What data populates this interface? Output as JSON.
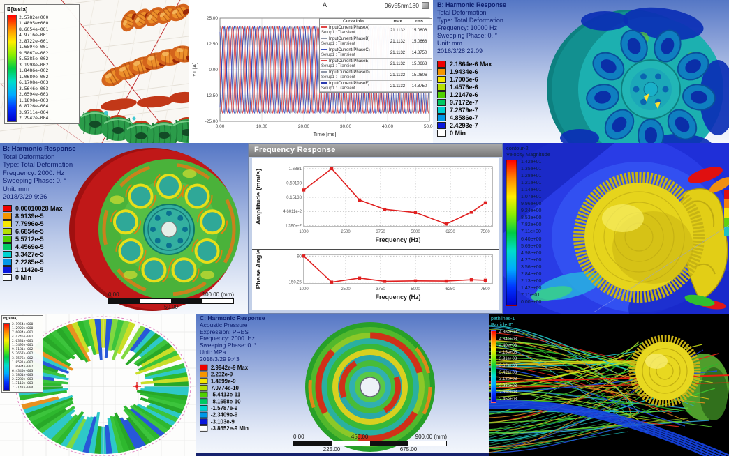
{
  "panels": {
    "flux_top": {
      "legend_title": "B[tesla]",
      "legend_values": [
        "2.5782e+000",
        "1.4895e+000",
        "8.6054e-001",
        "4.9716e-001",
        "2.8722e-001",
        "1.6594e-001",
        "9.5867e-002",
        "5.5385e-002",
        "3.1998e-002",
        "1.8486e-002",
        "1.0680e-002",
        "6.1708e-003",
        "3.5646e-003",
        "2.0594e-003",
        "1.1898e-003",
        "6.8726e-004",
        "3.9711e-004",
        "2.2942e-004"
      ]
    },
    "harmonic_10000": {
      "title": "B: Harmonic Response",
      "lines": "Total Deformation\nType: Total Deformation\nFrequency: 10000 Hz\nSweeping Phase: 0. °\nUnit: mm\n2016/3/28 22:09",
      "legend_values": [
        "2.1864e-6 Max",
        "1.9434e-6",
        "1.7005e-6",
        "1.4576e-6",
        "1.2147e-6",
        "9.7172e-7",
        "7.2879e-7",
        "4.8586e-7",
        "2.4293e-7",
        "0 Min"
      ]
    },
    "harmonic_2000": {
      "title": "B: Harmonic Response",
      "lines": "Total Deformation\nType: Total Deformation\nFrequency: 2000. Hz\nSweeping Phase: 0. °\nUnit: mm\n2018/3/29 9:36",
      "legend_values": [
        "0.00010028 Max",
        "8.9139e-5",
        "7.7996e-5",
        "6.6854e-5",
        "5.5712e-5",
        "4.4569e-5",
        "3.3427e-5",
        "2.2285e-5",
        "1.1142e-5",
        "0 Min"
      ],
      "scale_bar": {
        "left": "0.00",
        "right": "100.00 (mm)",
        "center": "50.00"
      }
    },
    "freq_response_window": {
      "title": "Frequency Response"
    },
    "cfd_velocity": {
      "legend_title_1": "contour-2",
      "legend_title_2": "Velocity Magnitude",
      "legend_values": [
        "1.42e+01",
        "1.35e+01",
        "1.28e+01",
        "1.21e+01",
        "1.14e+01",
        "1.07e+01",
        "9.96e+00",
        "9.24e+00",
        "8.53e+00",
        "7.82e+00",
        "7.11e+00",
        "6.40e+00",
        "5.69e+00",
        "4.98e+00",
        "4.27e+00",
        "3.56e+00",
        "2.84e+00",
        "2.13e+00",
        "1.42e+00",
        "7.11e-01",
        "0.00e+00"
      ]
    },
    "flux_ring": {
      "legend_title": "B[tesla]",
      "legend_values": [
        "2.1954e+000",
        "1.2920e+000",
        "7.6034e-001",
        "4.4745e-001",
        "2.6331e-001",
        "1.5495e-001",
        "9.1181e-002",
        "5.3657e-002",
        "3.1576e-002",
        "1.8581e-002",
        "1.0934e-002",
        "6.4340e-003",
        "3.7861e-003",
        "2.2280e-003",
        "1.3110e-003",
        "7.7147e-004"
      ]
    },
    "acoustic": {
      "title": "C: Harmonic Response",
      "lines": "Acoustic Pressure\nExpression: PRES\nFrequency: 2000. Hz\nSweeping Phase: 0. °\nUnit: MPa\n2018/3/29 9:43",
      "legend_values": [
        "2.9942e-9 Max",
        "2.232e-9",
        "1.4699e-9",
        "7.0774e-10",
        "-5.4413e-11",
        "-8.1658e-10",
        "-1.5787e-9",
        "-2.3409e-9",
        "-3.103e-9",
        "-3.8652e-9 Min"
      ],
      "scale_bar": {
        "left": "0.00",
        "center_top": "450.00",
        "right": "900.00 (mm)",
        "q1": "225.00",
        "q3": "675.00"
      }
    },
    "pathlines": {
      "legend_title_1": "pathlines-1",
      "legend_title_2": "Particle ID",
      "legend_values": [
        "4.86e+03",
        "4.64e+03",
        "4.40e+03",
        "4.15e+03",
        "3.91e+03",
        "3.67e+03",
        "3.42e+03",
        "3.18e+03",
        "2.93e+03",
        "2.69e+03",
        "2.45e+03"
      ]
    }
  },
  "colors": {
    "ansys_bands": [
      "#ee0000",
      "#f59500",
      "#f5e500",
      "#b5e000",
      "#4fd000",
      "#00c865",
      "#00d2d2",
      "#0098e8",
      "#0a18dd",
      "#ffffff"
    ],
    "rainbow_stops": [
      "#ff0000",
      "#ff8800",
      "#ffee00",
      "#88ee00",
      "#00cc44",
      "#00ddcc",
      "#00aaff",
      "#0033ff",
      "#0000cc"
    ]
  },
  "chart_data": [
    {
      "id": "input_current",
      "type": "line",
      "title": "A",
      "subtitle": "96v55nm180",
      "xlabel": "Time [ms]",
      "ylabel": "Y1 [A]",
      "xlim": [
        0,
        50
      ],
      "ylim": [
        -25,
        25
      ],
      "xticks": [
        "0.00",
        "10.00",
        "20.00",
        "30.00",
        "40.00",
        "50.00"
      ],
      "xtick_vals": [
        0,
        10,
        20,
        30,
        40,
        50
      ],
      "yticks": [
        "25.00",
        "12.50",
        "0.00",
        "-12.50",
        "-25.00"
      ],
      "ytick_vals": [
        25,
        12.5,
        0,
        -12.5,
        -25
      ],
      "amplitude": 21.1132,
      "period_ms": 2.4,
      "legend_header": [
        "Curve Info",
        "max",
        "rms"
      ],
      "series": [
        {
          "name": "InputCurrent(PhaseA)",
          "sub": "Setup1 : Transient",
          "max": "21.1132",
          "rms": "15.0606",
          "color": "#e04545",
          "phase_deg": 0
        },
        {
          "name": "InputCurrent(PhaseB)",
          "sub": "Setup1 : Transient",
          "max": "21.1132",
          "rms": "15.0668",
          "color": "#9097a8",
          "phase_deg": 60
        },
        {
          "name": "InputCurrent(PhaseC)",
          "sub": "Setup1 : Transient",
          "max": "21.1132",
          "rms": "14.8750",
          "color": "#3b50c0",
          "phase_deg": 120
        },
        {
          "name": "InputCurrent(PhaseE)",
          "sub": "Setup1 : Transient",
          "max": "21.1132",
          "rms": "15.0668",
          "color": "#e04545",
          "phase_deg": 180
        },
        {
          "name": "InputCurrent(PhaseD)",
          "sub": "Setup1 : Transient",
          "max": "21.1132",
          "rms": "15.0606",
          "color": "#9097a8",
          "phase_deg": 240
        },
        {
          "name": "InputCurrent(PhaseF)",
          "sub": "Setup1 : Transient",
          "max": "21.1132",
          "rms": "14.8750",
          "color": "#2b3bb0",
          "phase_deg": 300
        }
      ]
    },
    {
      "id": "frequency_response_amplitude",
      "type": "line",
      "ylabel": "Amplitude (mm/s)",
      "xlabel": "Frequency (Hz)",
      "yscale": "log",
      "xlim": [
        1000,
        7750
      ],
      "ylim": [
        0.0128,
        2.0
      ],
      "xticks": [
        "1000",
        "2500",
        "3750",
        "5000",
        "6250",
        "7500"
      ],
      "xtick_vals": [
        1000,
        2500,
        3750,
        5000,
        6250,
        7500
      ],
      "yticks": [
        "1.6881",
        "0.50198",
        "0.15138",
        "4.6011e-2",
        "1.390e-2"
      ],
      "ytick_vals": [
        1.6881,
        0.50198,
        0.15138,
        0.046011,
        0.0139
      ],
      "x": [
        1000,
        2000,
        3000,
        3900,
        5000,
        6100,
        7000,
        7500
      ],
      "y": [
        0.28,
        1.6881,
        0.12,
        0.055,
        0.042,
        0.016,
        0.043,
        0.095
      ],
      "color": "#e02020"
    },
    {
      "id": "frequency_response_phase",
      "type": "line",
      "ylabel": "Phase Angle",
      "xlabel": "Frequency (Hz)",
      "yscale": "linear",
      "xlim": [
        1000,
        7750
      ],
      "ylim": [
        -165,
        105
      ],
      "xticks": [
        "1000",
        "2500",
        "3750",
        "5000",
        "6250",
        "7500"
      ],
      "xtick_vals": [
        1000,
        2500,
        3750,
        5000,
        6250,
        7500
      ],
      "yticks": [
        "90",
        "-150.25"
      ],
      "ytick_vals": [
        90,
        -150.25
      ],
      "x": [
        1000,
        2000,
        3000,
        3900,
        5000,
        6100,
        7000,
        7500
      ],
      "y": [
        90,
        -150,
        -112,
        -142,
        -138,
        -140,
        -128,
        -132
      ],
      "color": "#e02020"
    }
  ]
}
